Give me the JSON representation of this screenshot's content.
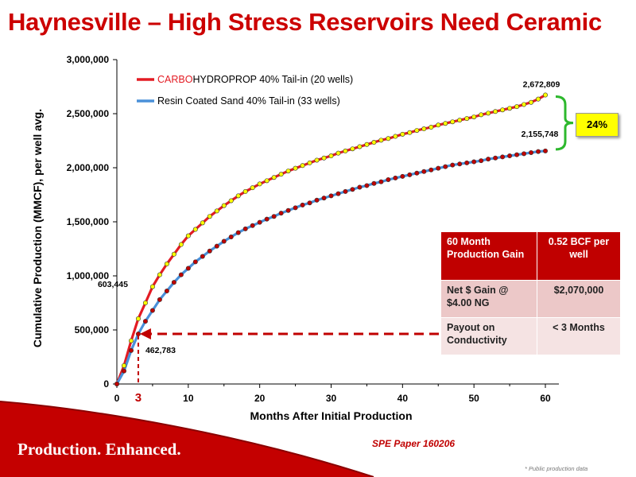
{
  "title": "Haynesville – High Stress Reservoirs Need Ceramic",
  "chart_data": {
    "type": "line",
    "xlabel": "Months After Initial Production",
    "ylabel": "Cumulative Production (MMCF), per well avg.",
    "xlim": [
      0,
      60
    ],
    "ylim": [
      0,
      3000000
    ],
    "x_ticks": [
      "0",
      "10",
      "20",
      "30",
      "40",
      "50",
      "60"
    ],
    "y_ticks": [
      "0",
      "500,000",
      "1,000,000",
      "1,500,000",
      "2,000,000",
      "2,500,000",
      "3,000,000"
    ],
    "grid": false,
    "legend_position": "top-left",
    "x": [
      0,
      1,
      2,
      3,
      4,
      5,
      6,
      7,
      8,
      9,
      10,
      11,
      12,
      13,
      14,
      15,
      16,
      17,
      18,
      19,
      20,
      21,
      22,
      23,
      24,
      25,
      26,
      27,
      28,
      29,
      30,
      31,
      32,
      33,
      34,
      35,
      36,
      37,
      38,
      39,
      40,
      41,
      42,
      43,
      44,
      45,
      46,
      47,
      48,
      49,
      50,
      51,
      52,
      53,
      54,
      55,
      56,
      57,
      58,
      59,
      60
    ],
    "series": [
      {
        "legend_prefix": "CARBO",
        "legend_rest": "HYDROPROP 40% Tail-in  (20 wells)",
        "color": "#e31b23",
        "marker_color": "#ffff00",
        "values": [
          0,
          170000,
          400000,
          603445,
          750000,
          900000,
          1010000,
          1110000,
          1200000,
          1290000,
          1370000,
          1430000,
          1490000,
          1550000,
          1600000,
          1650000,
          1695000,
          1740000,
          1780000,
          1815000,
          1850000,
          1880000,
          1910000,
          1940000,
          1970000,
          1995000,
          2020000,
          2045000,
          2070000,
          2090000,
          2110000,
          2135000,
          2155000,
          2175000,
          2195000,
          2215000,
          2235000,
          2255000,
          2270000,
          2290000,
          2310000,
          2325000,
          2345000,
          2360000,
          2375000,
          2395000,
          2410000,
          2425000,
          2440000,
          2455000,
          2470000,
          2490000,
          2505000,
          2520000,
          2535000,
          2550000,
          2565000,
          2585000,
          2605000,
          2635000,
          2672809
        ]
      },
      {
        "legend_prefix": "",
        "legend_rest": "Resin Coated Sand 40% Tail-in  (33 wells)",
        "color": "#4a90d9",
        "marker_color": "#c00000",
        "values": [
          0,
          120000,
          310000,
          462783,
          580000,
          680000,
          780000,
          860000,
          940000,
          1010000,
          1070000,
          1130000,
          1180000,
          1230000,
          1275000,
          1320000,
          1360000,
          1400000,
          1435000,
          1465000,
          1495000,
          1525000,
          1550000,
          1580000,
          1605000,
          1630000,
          1655000,
          1675000,
          1700000,
          1720000,
          1740000,
          1760000,
          1780000,
          1800000,
          1820000,
          1835000,
          1855000,
          1870000,
          1890000,
          1905000,
          1920000,
          1935000,
          1950000,
          1965000,
          1980000,
          1995000,
          2010000,
          2025000,
          2035000,
          2045000,
          2055000,
          2065000,
          2080000,
          2090000,
          2100000,
          2110000,
          2120000,
          2130000,
          2140000,
          2150000,
          2155748
        ]
      }
    ],
    "annotations": {
      "carbo_end": "2,672,809",
      "resin_end": "2,155,748",
      "carbo_m3": "603,445",
      "resin_m3": "462,783",
      "payout_month": "3",
      "difference_pct": "24%"
    }
  },
  "gain_table": {
    "rows": [
      [
        "60 Month Production Gain",
        "0.52 BCF per well"
      ],
      [
        "Net $ Gain @ $4.00 NG",
        "$2,070,000"
      ],
      [
        "Payout on Conductivity",
        "< 3 Months"
      ]
    ]
  },
  "footer": {
    "tagline": "Production. Enhanced.",
    "source": "SPE Paper 160206",
    "note": "* Public production data"
  },
  "colors": {
    "brand_red": "#cc0000",
    "table_header": "#c00000",
    "table_row1": "#ecc8c8",
    "table_row2": "#f5e3e3",
    "bracket": "#2db82d",
    "highlight": "#ffff00"
  }
}
